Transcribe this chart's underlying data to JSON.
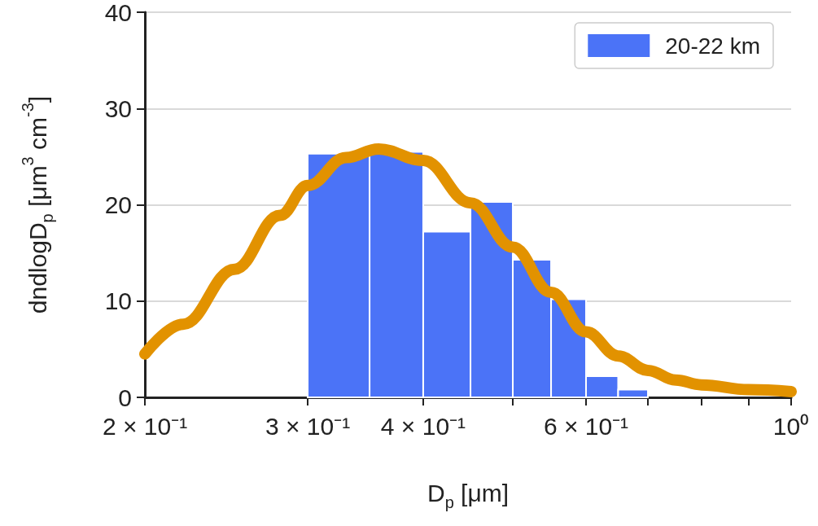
{
  "chart_data": {
    "type": "histogram",
    "xlabel": "D$_{p}$ [μm]",
    "ylabel": "dndlogD$_{p}$ [μm$^{3}$ cm$^{-3}$]",
    "log": "x",
    "xlim": [
      0.2,
      1
    ],
    "ylim": [
      0,
      40
    ],
    "xticks": [
      {
        "value": 0.2,
        "label": "2 × 10⁻¹"
      },
      {
        "value": 0.3,
        "label": "3 × 10⁻¹"
      },
      {
        "value": 0.4,
        "label": "4 × 10⁻¹"
      },
      {
        "value": 0.5,
        "label": null
      },
      {
        "value": 0.6,
        "label": "6 × 10⁻¹"
      },
      {
        "value": 0.7,
        "label": null
      },
      {
        "value": 0.8,
        "label": null
      },
      {
        "value": 0.9,
        "label": null
      },
      {
        "value": 1,
        "label": "10⁰"
      }
    ],
    "yticks": [
      0,
      10,
      20,
      30,
      40
    ],
    "grid": "y",
    "legend": "top right",
    "series": [
      {
        "name": "20-22 km",
        "color": "#4b73f7",
        "bins": [
          0.3,
          0.35,
          0.4,
          0.45,
          0.5,
          0.55,
          0.6,
          0.65,
          0.7
        ],
        "values": [
          25.3,
          25.5,
          17.2,
          20.3,
          14.3,
          10.2,
          2.2,
          0.8
        ]
      },
      {
        "type": "line",
        "color": "#e29200",
        "x": [
          0.2,
          0.22,
          0.25,
          0.28,
          0.3,
          0.33,
          0.358,
          0.4,
          0.45,
          0.5,
          0.55,
          0.6,
          0.65,
          0.7,
          0.75,
          0.8,
          0.9,
          1
        ],
        "values": [
          4.5,
          7.6,
          13.3,
          18.9,
          22,
          24.9,
          25.8,
          24.6,
          20.2,
          15.6,
          10.9,
          6.8,
          4.3,
          2.8,
          1.8,
          1.3,
          0.8,
          0.6
        ]
      }
    ]
  }
}
